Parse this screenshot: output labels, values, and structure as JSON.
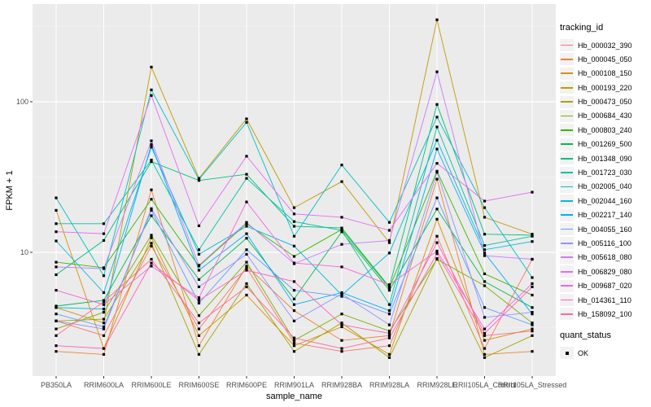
{
  "chart_data": {
    "type": "line",
    "title": "",
    "xlabel": "sample_name",
    "ylabel": "FPKM + 1",
    "yscale": "log10",
    "ylim": [
      1.5,
      430
    ],
    "ytick_values": [
      10,
      100
    ],
    "ytick_labels": [
      "10",
      "100"
    ],
    "yminor_values": [
      3.162,
      31.62,
      316.2
    ],
    "grid": true,
    "legend_position": "right",
    "point_shape": "filled-square",
    "point_color": "#000000",
    "categories": [
      "PB350LA",
      "RRIM600LA",
      "RRIM600LE",
      "RRIM600SE",
      "RRIM600PE",
      "RRIM901LA",
      "RRIM928BA",
      "RRIM928LA",
      "RRIM928LE",
      "RRII105LA_Control",
      "RRII105LA_Stressed"
    ],
    "series": [
      {
        "name": "Hb_000032_390",
        "color": "#F8766D",
        "values": [
          3.5,
          2.8,
          11.0,
          3.1,
          7.9,
          2.5,
          2.2,
          2.4,
          12.8,
          2.3,
          9.0
        ]
      },
      {
        "name": "Hb_000045_050",
        "color": "#EB8335",
        "values": [
          2.2,
          2.1,
          26.0,
          2.4,
          8.1,
          4.1,
          2.6,
          2.8,
          30.6,
          2.1,
          2.2
        ]
      },
      {
        "name": "Hb_000108_150",
        "color": "#D89000",
        "values": [
          19.0,
          2.3,
          12.5,
          2.8,
          5.2,
          2.4,
          3.2,
          2.1,
          16.6,
          2.6,
          3.1
        ]
      },
      {
        "name": "Hb_000193_220",
        "color": "#C09B00",
        "values": [
          4.3,
          3.4,
          170.0,
          31.0,
          77.0,
          19.8,
          29.5,
          11.6,
          350.0,
          17.1,
          13.2
        ]
      },
      {
        "name": "Hb_000473_050",
        "color": "#A3A500",
        "values": [
          3.5,
          3.6,
          11.5,
          2.1,
          6.2,
          2.2,
          3.4,
          2.0,
          9.1,
          2.0,
          2.8
        ]
      },
      {
        "name": "Hb_000684_430",
        "color": "#7CAE00",
        "values": [
          3.1,
          4.0,
          13.0,
          3.8,
          8.6,
          2.6,
          3.9,
          3.0,
          9.0,
          6.0,
          3.4
        ]
      },
      {
        "name": "Hb_000803_240",
        "color": "#39B600",
        "values": [
          8.6,
          7.9,
          22.5,
          8.1,
          15.5,
          9.4,
          14.2,
          5.8,
          34.6,
          7.2,
          5.2
        ]
      },
      {
        "name": "Hb_001269_500",
        "color": "#00BB4E",
        "values": [
          4.4,
          4.8,
          17.5,
          6.6,
          12.4,
          4.9,
          13.7,
          5.6,
          19.4,
          6.4,
          4.3
        ]
      },
      {
        "name": "Hb_001348_090",
        "color": "#00BF7D",
        "values": [
          7.1,
          12.0,
          40.0,
          30.0,
          33.0,
          14.9,
          14.5,
          5.9,
          96.0,
          13.2,
          13.0
        ]
      },
      {
        "name": "Hb_001723_030",
        "color": "#00C1A3",
        "values": [
          15.5,
          15.5,
          41.0,
          10.4,
          31.0,
          16.0,
          14.0,
          4.5,
          68.0,
          11.1,
          12.8
        ]
      },
      {
        "name": "Hb_002005_040",
        "color": "#00BFC4",
        "values": [
          23.0,
          7.0,
          120.0,
          30.5,
          73.0,
          12.8,
          38.0,
          15.8,
          79.0,
          19.8,
          6.8
        ]
      },
      {
        "name": "Hb_002044_160",
        "color": "#00BADE",
        "values": [
          11.9,
          5.4,
          50.0,
          9.7,
          14.9,
          11.0,
          5.2,
          9.9,
          55.6,
          10.4,
          11.8
        ]
      },
      {
        "name": "Hb_002217_140",
        "color": "#00B0F6",
        "values": [
          4.3,
          4.2,
          52.0,
          7.6,
          13.3,
          4.5,
          5.4,
          4.1,
          48.5,
          9.9,
          3.9
        ]
      },
      {
        "name": "Hb_004055_160",
        "color": "#619CFF",
        "values": [
          3.9,
          3.2,
          19.0,
          4.6,
          10.4,
          5.6,
          5.1,
          3.9,
          23.0,
          4.3,
          3.3
        ]
      },
      {
        "name": "Hb_005116_100",
        "color": "#9590FF",
        "values": [
          3.5,
          3.1,
          19.5,
          5.9,
          9.7,
          3.5,
          5.3,
          3.3,
          34.0,
          3.7,
          4.0
        ]
      },
      {
        "name": "Hb_005618_080",
        "color": "#C77CFF",
        "values": [
          8.0,
          7.8,
          55.0,
          8.2,
          15.8,
          8.4,
          11.3,
          12.0,
          158.0,
          9.5,
          9.0
        ]
      },
      {
        "name": "Hb_006829_080",
        "color": "#E76BF3",
        "values": [
          13.7,
          13.3,
          110.0,
          15.0,
          43.5,
          18.0,
          17.1,
          14.0,
          39.0,
          21.9,
          25.1
        ]
      },
      {
        "name": "Hb_009687_020",
        "color": "#FA62DB",
        "values": [
          5.6,
          4.5,
          8.1,
          5.0,
          21.6,
          8.5,
          8.0,
          6.1,
          10.2,
          3.1,
          6.2
        ]
      },
      {
        "name": "Hb_014361_110",
        "color": "#FF62BC",
        "values": [
          2.4,
          2.3,
          8.5,
          4.8,
          7.6,
          6.4,
          3.3,
          2.9,
          11.6,
          2.9,
          5.9
        ]
      },
      {
        "name": "Hb_158092_100",
        "color": "#FF6A98",
        "values": [
          2.8,
          4.7,
          9.0,
          3.4,
          5.9,
          2.7,
          2.3,
          2.7,
          9.8,
          2.8,
          3.0
        ]
      }
    ]
  },
  "legend": {
    "tracking_title": "tracking_id",
    "quant_title": "quant_status",
    "quant_items": [
      {
        "label": "OK",
        "symbol": "black-square"
      }
    ]
  },
  "theme": {
    "figure_bg": "#FFFFFF",
    "panel_bg": "#EBEBEB",
    "grid_major": "#FFFFFF",
    "grid_minor": "#F5F5F5",
    "axis_text": "#4D4D4D",
    "axis_title": "#000000",
    "tick_mark": "#333333",
    "legend_key_bg": "#F2F2F2"
  }
}
